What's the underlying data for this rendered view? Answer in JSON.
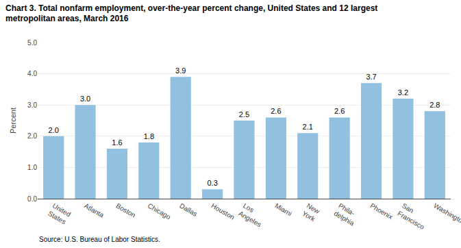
{
  "chart_data": {
    "type": "bar",
    "title": "Chart 3. Total nonfarm employment, over-the-year percent change, United States and 12 largest\nmetropolitan areas, March 2016",
    "ylabel": "Percent",
    "source": "Source: U.S. Bureau of Labor Statistics.",
    "categories": [
      "United\nStates",
      "Atlanta",
      "Boston",
      "Chicago",
      "Dallas",
      "Houston",
      "Los\nAngeles",
      "Miami",
      "New\nYork",
      "Phila-\ndelphia",
      "Phoenix",
      "San\nFrancisco",
      "Washington"
    ],
    "values": [
      2.0,
      3.0,
      1.6,
      1.8,
      3.9,
      0.3,
      2.5,
      2.6,
      2.1,
      2.6,
      3.7,
      3.2,
      2.8
    ],
    "value_labels": [
      "2.0",
      "3.0",
      "1.6",
      "1.8",
      "3.9",
      "0.3",
      "2.5",
      "2.6",
      "2.1",
      "2.6",
      "3.7",
      "3.2",
      "2.8"
    ],
    "data_labels": true,
    "color": "#92C0E0",
    "ylim": [
      0,
      5.0
    ],
    "yticks": [
      {
        "value": 0,
        "label": "0.0"
      },
      {
        "value": 1,
        "label": "1.0"
      },
      {
        "value": 2,
        "label": "2.0"
      },
      {
        "value": 3,
        "label": "3.0"
      },
      {
        "value": 4,
        "label": "4.0"
      },
      {
        "value": 5,
        "label": "5.0"
      }
    ],
    "grid": true
  }
}
